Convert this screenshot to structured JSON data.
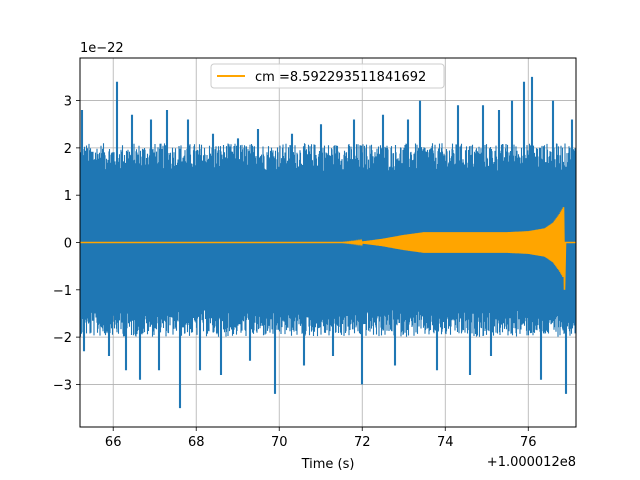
{
  "chart_data": {
    "type": "line",
    "xlabel": "Time (s)",
    "ylabel": "",
    "x_offset_text": "+1.000012e8",
    "y_multiplier_text": "1e−22",
    "xlim": [
      65.2,
      77.15
    ],
    "ylim": [
      -3.9,
      3.9
    ],
    "x_ticks": [
      66,
      68,
      70,
      72,
      74,
      76
    ],
    "y_ticks": [
      -3,
      -2,
      -1,
      0,
      1,
      2,
      3
    ],
    "grid": true,
    "legend_position": "upper center",
    "series": [
      {
        "name": "",
        "color": "#1f77b4",
        "description": "noise strain",
        "x_range": [
          65.2,
          77.15
        ],
        "typical_band": [
          -1.9,
          2.0
        ],
        "spikes": [
          [
            65.25,
            2.8
          ],
          [
            65.3,
            -2.3
          ],
          [
            65.9,
            -2.4
          ],
          [
            66.1,
            3.4
          ],
          [
            66.3,
            -2.7
          ],
          [
            66.45,
            2.7
          ],
          [
            66.65,
            -2.9
          ],
          [
            66.9,
            2.6
          ],
          [
            67.1,
            -2.7
          ],
          [
            67.3,
            2.8
          ],
          [
            67.6,
            -3.5
          ],
          [
            67.8,
            2.6
          ],
          [
            68.1,
            -2.7
          ],
          [
            68.4,
            2.3
          ],
          [
            68.6,
            -2.8
          ],
          [
            69.0,
            2.2
          ],
          [
            69.3,
            -2.5
          ],
          [
            69.5,
            2.4
          ],
          [
            69.9,
            -3.2
          ],
          [
            70.3,
            2.3
          ],
          [
            70.6,
            -2.6
          ],
          [
            71.0,
            2.5
          ],
          [
            71.3,
            -2.4
          ],
          [
            71.8,
            2.6
          ],
          [
            72.0,
            -3.0
          ],
          [
            72.5,
            2.7
          ],
          [
            72.8,
            -2.6
          ],
          [
            73.1,
            2.6
          ],
          [
            73.4,
            3.0
          ],
          [
            73.8,
            -2.7
          ],
          [
            74.3,
            2.9
          ],
          [
            74.6,
            -2.8
          ],
          [
            74.9,
            2.9
          ],
          [
            75.1,
            -2.4
          ],
          [
            75.3,
            2.8
          ],
          [
            75.6,
            3.0
          ],
          [
            75.9,
            3.4
          ],
          [
            76.1,
            3.5
          ],
          [
            76.3,
            -2.9
          ],
          [
            76.6,
            3.0
          ],
          [
            76.9,
            -3.2
          ],
          [
            77.05,
            2.6
          ]
        ]
      },
      {
        "name": "cm =8.592293511841692",
        "color": "#ffa500",
        "description": "inspiral chirp template",
        "x_start": 71.5,
        "x_merger": 76.85,
        "x_end": 77.15,
        "envelope": [
          [
            71.5,
            0.0
          ],
          [
            72.0,
            0.02
          ],
          [
            72.5,
            0.08
          ],
          [
            73.0,
            0.16
          ],
          [
            73.5,
            0.22
          ],
          [
            74.0,
            0.22
          ],
          [
            74.5,
            0.22
          ],
          [
            75.0,
            0.22
          ],
          [
            75.5,
            0.22
          ],
          [
            76.0,
            0.24
          ],
          [
            76.4,
            0.3
          ],
          [
            76.6,
            0.42
          ],
          [
            76.75,
            0.6
          ],
          [
            76.85,
            0.75
          ]
        ]
      }
    ]
  }
}
